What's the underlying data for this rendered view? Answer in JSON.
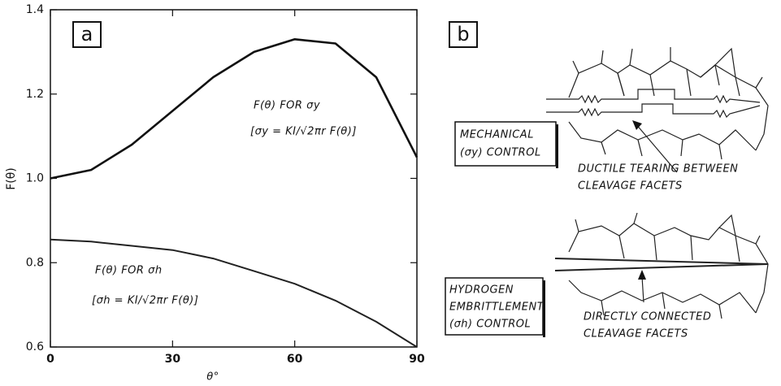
{
  "chart_data": {
    "type": "line",
    "panel_label": "a",
    "x": [
      0,
      10,
      20,
      30,
      40,
      50,
      60,
      70,
      80,
      90
    ],
    "series": [
      {
        "name": "F(θ) FOR σy",
        "color": "#111111",
        "values": [
          1.0,
          1.02,
          1.08,
          1.16,
          1.24,
          1.3,
          1.33,
          1.32,
          1.24,
          1.05
        ]
      },
      {
        "name": "F(θ) FOR σh",
        "color": "#222222",
        "values": [
          0.855,
          0.85,
          0.84,
          0.83,
          0.81,
          0.78,
          0.75,
          0.71,
          0.66,
          0.6
        ]
      }
    ],
    "annotations": [
      "[σy = KI/√2πr F(θ)]",
      "[σh = KI/√2πr F(θ)]"
    ],
    "xlabel": "θ°",
    "ylabel": "F(θ)",
    "xlim": [
      0,
      90
    ],
    "xticks": [
      0,
      30,
      60,
      90
    ],
    "ylim": [
      0.6,
      1.4
    ],
    "yticks": [
      0.6,
      0.8,
      {
        "value": 1.0,
        "label": "1.0"
      },
      1.2,
      1.4
    ]
  },
  "diagram": {
    "panel_label": "b",
    "mechanical": {
      "box": [
        "MECHANICAL",
        "(σy) CONTROL"
      ],
      "note": [
        "DUCTILE TEARING BETWEEN",
        "CLEAVAGE FACETS"
      ]
    },
    "hydrogen": {
      "box": [
        "HYDROGEN",
        "EMBRITTLEMENT",
        "(σh) CONTROL"
      ],
      "note": [
        "DIRECTLY CONNECTED",
        "CLEAVAGE FACETS"
      ]
    }
  }
}
